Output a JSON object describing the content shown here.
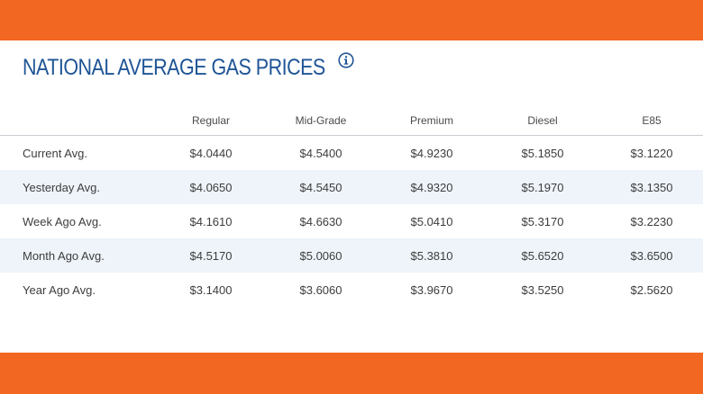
{
  "page": {
    "title": "NATIONAL AVERAGE GAS PRICES",
    "info_icon": "info-icon",
    "colors": {
      "accent_band": "#f26722",
      "title": "#1f5596",
      "alt_row": "#eef4fa"
    }
  },
  "table": {
    "columns": [
      "",
      "Regular",
      "Mid-Grade",
      "Premium",
      "Diesel",
      "E85"
    ],
    "rows": [
      {
        "label": "Current Avg.",
        "values": [
          "$4.0440",
          "$4.5400",
          "$4.9230",
          "$5.1850",
          "$3.1220"
        ]
      },
      {
        "label": "Yesterday Avg.",
        "values": [
          "$4.0650",
          "$4.5450",
          "$4.9320",
          "$5.1970",
          "$3.1350"
        ]
      },
      {
        "label": "Week Ago Avg.",
        "values": [
          "$4.1610",
          "$4.6630",
          "$5.0410",
          "$5.3170",
          "$3.2230"
        ]
      },
      {
        "label": "Month Ago Avg.",
        "values": [
          "$4.5170",
          "$5.0060",
          "$5.3810",
          "$5.6520",
          "$3.6500"
        ]
      },
      {
        "label": "Year Ago Avg.",
        "values": [
          "$3.1400",
          "$3.6060",
          "$3.9670",
          "$3.5250",
          "$2.5620"
        ]
      }
    ]
  }
}
